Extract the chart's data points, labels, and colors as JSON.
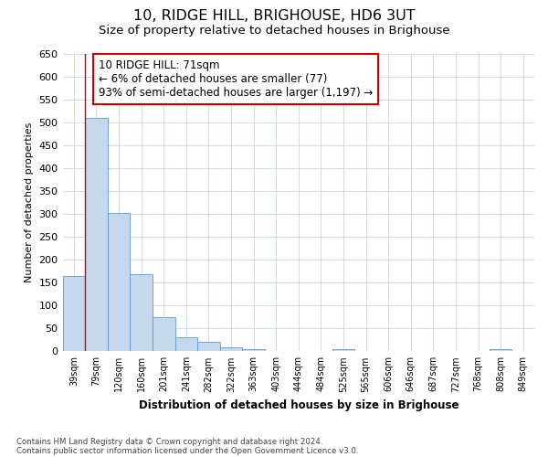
{
  "title": "10, RIDGE HILL, BRIGHOUSE, HD6 3UT",
  "subtitle": "Size of property relative to detached houses in Brighouse",
  "xlabel": "Distribution of detached houses by size in Brighouse",
  "ylabel": "Number of detached properties",
  "footer_line1": "Contains HM Land Registry data © Crown copyright and database right 2024.",
  "footer_line2": "Contains public sector information licensed under the Open Government Licence v3.0.",
  "bar_labels": [
    "39sqm",
    "79sqm",
    "120sqm",
    "160sqm",
    "201sqm",
    "241sqm",
    "282sqm",
    "322sqm",
    "363sqm",
    "403sqm",
    "444sqm",
    "484sqm",
    "525sqm",
    "565sqm",
    "606sqm",
    "646sqm",
    "687sqm",
    "727sqm",
    "768sqm",
    "808sqm",
    "849sqm"
  ],
  "bar_values": [
    165,
    510,
    303,
    168,
    75,
    31,
    20,
    8,
    5,
    0,
    0,
    0,
    5,
    0,
    0,
    0,
    0,
    0,
    0,
    5,
    0
  ],
  "bar_color": "#c5d8ed",
  "bar_edge_color": "#5b9bd5",
  "ylim": [
    0,
    650
  ],
  "yticks": [
    0,
    50,
    100,
    150,
    200,
    250,
    300,
    350,
    400,
    450,
    500,
    550,
    600,
    650
  ],
  "property_bin_index": 0.5,
  "vline_color": "#cc0000",
  "annotation_text_line1": "10 RIDGE HILL: 71sqm",
  "annotation_text_line2": "← 6% of detached houses are smaller (77)",
  "annotation_text_line3": "93% of semi-detached houses are larger (1,197) →",
  "annotation_box_color": "#cc0000",
  "grid_color": "#c8d4e3",
  "background_color": "#ffffff",
  "title_fontsize": 11.5,
  "subtitle_fontsize": 9.5,
  "annotation_fontsize": 8.5,
  "ylabel_fontsize": 8,
  "xlabel_fontsize": 8.5,
  "footer_fontsize": 6.2
}
